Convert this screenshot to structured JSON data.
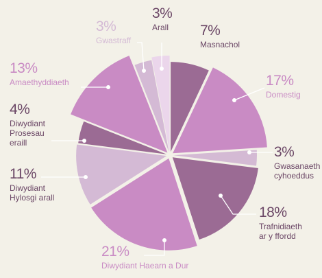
{
  "chart_data": {
    "type": "pie",
    "categories": [
      "Masnachol",
      "Domestig",
      "Gwasanaeth cyhoeddus",
      "Trafnidiaeth ar y ffordd",
      "Diwydiant Haearn a Dur",
      "Diwydiant Hylosgi arall",
      "Diwydiant Prosesau eraill",
      "Amaethyddiaeth",
      "Gwastraff",
      "Arall"
    ],
    "values": [
      7,
      17,
      3,
      18,
      21,
      11,
      4,
      13,
      3,
      3
    ],
    "value_labels": [
      "7%",
      "17%",
      "3%",
      "18%",
      "21%",
      "11%",
      "4%",
      "13%",
      "3%",
      "3%"
    ],
    "colors": [
      "#9b6b94",
      "#c98bc4",
      "#d4bad4",
      "#9b6b94",
      "#c98bc4",
      "#d4bad5",
      "#9b6b94",
      "#c98bc4",
      "#d4bad5",
      "#ebd6eb"
    ]
  }
}
